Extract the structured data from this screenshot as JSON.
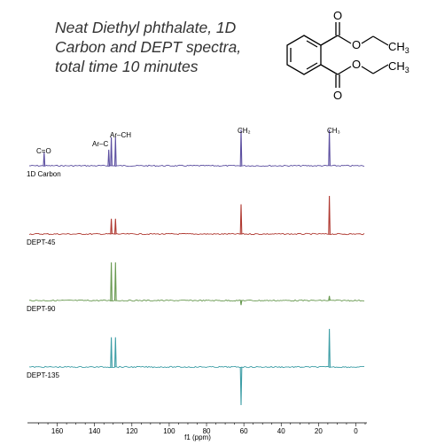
{
  "caption": {
    "line1": "Neat Diethyl phthalate, 1D",
    "line2": "Carbon and DEPT spectra,",
    "line3": "total time 10 minutes"
  },
  "structure_labels": {
    "o_top": "O",
    "o_ester_top": "O",
    "ch3_top": "CH3",
    "o_ester_bottom": "O",
    "ch3_bottom": "CH3",
    "o_bottom": "O"
  },
  "peak_labels": {
    "co": "C=O",
    "arc": "Ar–C",
    "arch": "Ar–CH",
    "ch2": "CH₂",
    "ch3": "CH₃"
  },
  "colors": {
    "carbon": "#5c4fa0",
    "dept45": "#b03a32",
    "dept90": "#6a9a52",
    "dept135": "#3e9ea6"
  },
  "chart_data": {
    "type": "line",
    "xlabel": "f1 (ppm)",
    "xlim": [
      175,
      -5
    ],
    "x_reversed": true,
    "x_ticks": [
      160,
      140,
      120,
      100,
      80,
      60,
      40,
      20,
      0
    ],
    "series": [
      {
        "name": "1D Carbon",
        "peaks": [
          {
            "ppm": 167.0,
            "intensity": 0.35
          },
          {
            "ppm": 132.4,
            "intensity": 0.42
          },
          {
            "ppm": 131.0,
            "intensity": 0.75
          },
          {
            "ppm": 128.8,
            "intensity": 0.75
          },
          {
            "ppm": 61.5,
            "intensity": 0.95
          },
          {
            "ppm": 14.2,
            "intensity": 0.95
          }
        ]
      },
      {
        "name": "DEPT-45",
        "peaks": [
          {
            "ppm": 131.0,
            "intensity": 0.4
          },
          {
            "ppm": 128.8,
            "intensity": 0.4
          },
          {
            "ppm": 61.5,
            "intensity": 0.78
          },
          {
            "ppm": 14.2,
            "intensity": 1.0
          }
        ]
      },
      {
        "name": "DEPT-90",
        "peaks": [
          {
            "ppm": 131.0,
            "intensity": 1.0
          },
          {
            "ppm": 128.8,
            "intensity": 1.0
          },
          {
            "ppm": 61.5,
            "intensity": -0.12
          },
          {
            "ppm": 14.2,
            "intensity": 0.12
          }
        ]
      },
      {
        "name": "DEPT-135",
        "peaks": [
          {
            "ppm": 131.0,
            "intensity": 0.78
          },
          {
            "ppm": 128.8,
            "intensity": 0.78
          },
          {
            "ppm": 61.5,
            "intensity": -1.0
          },
          {
            "ppm": 14.2,
            "intensity": 1.0
          }
        ]
      }
    ]
  }
}
